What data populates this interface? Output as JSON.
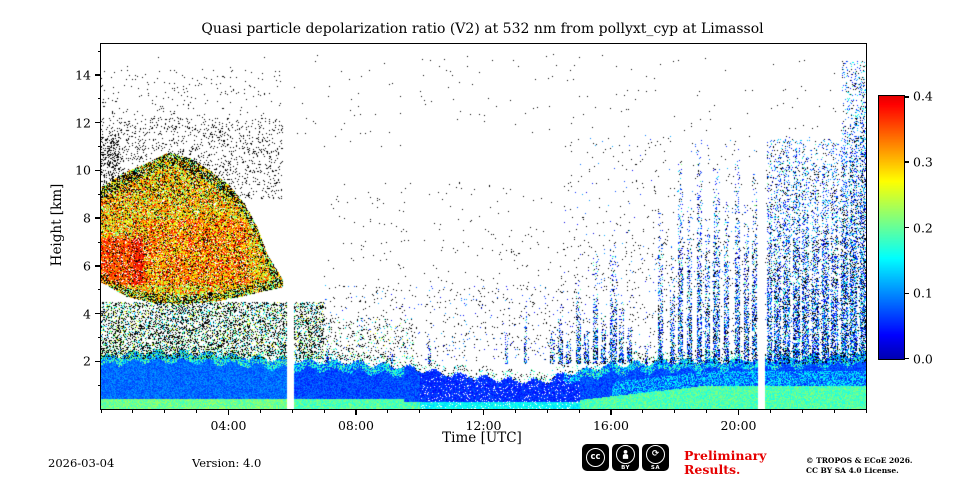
{
  "title": "Quasi particle depolarization ratio (V2) at 532 nm from pollyxt_cyp at Limassol",
  "footer": {
    "date": "2026-03-04",
    "version": "Version: 4.0",
    "preliminary_line1": "Preliminary",
    "preliminary_line2": "Results.",
    "license_line1": "© TROPOS & ECoE 2026.",
    "license_line2": "CC BY SA 4.0 License."
  },
  "badges": {
    "cc": "cc",
    "by": "BY",
    "sa": "SA"
  },
  "colors": {
    "preliminary_red": "#e60000",
    "axis": "#000000"
  },
  "chart_data": {
    "type": "heatmap",
    "title": "Quasi particle depolarization ratio (V2) at 532 nm from pollyxt_cyp at Limassol",
    "xlabel": "Time [UTC]",
    "ylabel": "Height [km]",
    "xlim_hours": [
      0,
      24
    ],
    "ylim_km": [
      0,
      15.3
    ],
    "x_ticks": [
      {
        "hour": 4,
        "label": "04:00"
      },
      {
        "hour": 8,
        "label": "08:00"
      },
      {
        "hour": 12,
        "label": "12:00"
      },
      {
        "hour": 16,
        "label": "16:00"
      },
      {
        "hour": 20,
        "label": "20:00"
      }
    ],
    "x_minor_step_hours": 1,
    "y_ticks": [
      2,
      4,
      6,
      8,
      10,
      12,
      14
    ],
    "y_minor_step_km": 1,
    "grid": false,
    "colorbar": {
      "min": 0.0,
      "max": 0.4,
      "ticks": [
        "0.0",
        "0.1",
        "0.2",
        "0.3",
        "0.4"
      ],
      "colormap": "jet-like"
    },
    "data_gaps_hours": [
      [
        5.85,
        6.02
      ],
      [
        20.62,
        20.79
      ]
    ],
    "description": "Lidar quicklook: low boundary layer (depol ~0.05) all day with greener band near ground; lofted dust layer 00:00-05:40 UTC between ~4.4 and ~10.8 km with high depol 0.2-0.4; dense dark noise band 2-4.5 km before 07:00; sparse noise midday; many narrow cloud/precip columns after 14:00 reaching up to ~11-14 km.",
    "features": {
      "boundary_layer": {
        "top_profile_km": [
          [
            0,
            2.2
          ],
          [
            1.5,
            2.4
          ],
          [
            3,
            2.35
          ],
          [
            4.5,
            2.2
          ],
          [
            6,
            2.05
          ],
          [
            8,
            1.95
          ],
          [
            9.5,
            1.75
          ],
          [
            11,
            1.45
          ],
          [
            12.5,
            1.25
          ],
          [
            13.8,
            1.15
          ],
          [
            14.8,
            1.55
          ],
          [
            16,
            1.85
          ],
          [
            18,
            2.0
          ],
          [
            20,
            2.05
          ],
          [
            22,
            2.15
          ],
          [
            24,
            2.25
          ]
        ],
        "base_value": 0.045,
        "green_band_value": 0.16
      },
      "dust_layer": {
        "t_end": 5.7,
        "top_profile": [
          [
            0,
            9.3
          ],
          [
            0.7,
            9.9
          ],
          [
            1.4,
            10.3
          ],
          [
            2.1,
            10.75
          ],
          [
            2.8,
            10.5
          ],
          [
            3.4,
            10.0
          ],
          [
            4.0,
            9.4
          ],
          [
            4.5,
            8.6
          ],
          [
            4.9,
            7.6
          ],
          [
            5.2,
            6.5
          ],
          [
            5.7,
            5.4
          ]
        ],
        "bottom_profile": [
          [
            0,
            5.3
          ],
          [
            0.8,
            4.7
          ],
          [
            1.6,
            4.45
          ],
          [
            2.6,
            4.4
          ],
          [
            3.6,
            4.5
          ],
          [
            4.4,
            4.7
          ],
          [
            5.0,
            4.9
          ],
          [
            5.7,
            5.1
          ]
        ],
        "value_range": [
          0.2,
          0.36
        ],
        "red_core": {
          "t": [
            0,
            1.3
          ],
          "h": [
            5.2,
            7.2
          ],
          "value_range": [
            0.3,
            0.4
          ]
        }
      },
      "speckle_regions": [
        {
          "t": [
            0,
            7.0
          ],
          "h": [
            2.1,
            4.5
          ],
          "d": 0.5,
          "mix": "darkmix"
        },
        {
          "t": [
            0,
            5.7
          ],
          "h": [
            8.8,
            12.2
          ],
          "d": 0.1,
          "mix": "black"
        },
        {
          "t": [
            0,
            5.7
          ],
          "h": [
            12.2,
            14.2
          ],
          "d": 0.02,
          "mix": "black"
        },
        {
          "t": [
            0,
            0.6
          ],
          "h": [
            9.5,
            11.5
          ],
          "d": 0.25,
          "mix": "black"
        },
        {
          "t": [
            5.7,
            9.8
          ],
          "h": [
            2.0,
            3.8
          ],
          "d": 0.1,
          "mix": "darkmix"
        },
        {
          "t": [
            7.0,
            14.5
          ],
          "h": [
            2.0,
            5.2
          ],
          "d": 0.035,
          "mix": "blackblue"
        },
        {
          "t": [
            7.0,
            14.5
          ],
          "h": [
            5.2,
            9.5
          ],
          "d": 0.007,
          "mix": "black"
        },
        {
          "t": [
            14.5,
            24
          ],
          "h": [
            2.0,
            7.0
          ],
          "d": 0.03,
          "mix": "blackblue"
        },
        {
          "t": [
            14.5,
            24
          ],
          "h": [
            7.0,
            11.5
          ],
          "d": 0.012,
          "mix": "blackblue"
        },
        {
          "t": [
            0,
            24
          ],
          "h": [
            11.0,
            14.9
          ],
          "d": 0.003,
          "mix": "black"
        },
        {
          "t": [
            21.0,
            24
          ],
          "h": [
            2.2,
            11.3
          ],
          "d": 0.09,
          "mix": "bluemix"
        },
        {
          "t": [
            23.25,
            24
          ],
          "h": [
            2.2,
            14.6
          ],
          "d": 0.15,
          "mix": "bluemix"
        }
      ],
      "streaks": [
        [
          7.1,
          0.03,
          2.9
        ],
        [
          9.1,
          0.03,
          2.7
        ],
        [
          10.3,
          0.03,
          3.1
        ],
        [
          12.7,
          0.03,
          3.3
        ],
        [
          13.3,
          0.04,
          3.9
        ],
        [
          14.15,
          0.05,
          3.4
        ],
        [
          14.4,
          0.06,
          4.3
        ],
        [
          14.65,
          0.05,
          3.0
        ],
        [
          14.95,
          0.07,
          5.6
        ],
        [
          15.2,
          0.05,
          3.6
        ],
        [
          15.5,
          0.06,
          6.4
        ],
        [
          15.75,
          0.05,
          4.2
        ],
        [
          16.05,
          0.08,
          6.9
        ],
        [
          16.3,
          0.05,
          4.8
        ],
        [
          16.55,
          0.05,
          3.6
        ],
        [
          17.1,
          0.04,
          2.8
        ],
        [
          17.55,
          0.06,
          8.4
        ],
        [
          17.9,
          0.05,
          6.0
        ],
        [
          18.15,
          0.07,
          10.4
        ],
        [
          18.45,
          0.06,
          8.8
        ],
        [
          18.75,
          0.07,
          10.9
        ],
        [
          19.0,
          0.05,
          8.0
        ],
        [
          19.3,
          0.08,
          10.6
        ],
        [
          19.6,
          0.06,
          9.0
        ],
        [
          19.95,
          0.07,
          10.9
        ],
        [
          20.25,
          0.06,
          8.6
        ],
        [
          20.5,
          0.05,
          10.0
        ],
        [
          20.95,
          0.07,
          11.2
        ],
        [
          21.2,
          0.08,
          10.6
        ],
        [
          21.5,
          0.09,
          11.3
        ],
        [
          21.8,
          0.08,
          10.9
        ],
        [
          22.1,
          0.09,
          11.1
        ],
        [
          22.4,
          0.08,
          10.4
        ],
        [
          22.7,
          0.09,
          11.4
        ],
        [
          23.0,
          0.08,
          10.9
        ],
        [
          23.3,
          0.09,
          11.0
        ],
        [
          23.6,
          0.09,
          12.5
        ],
        [
          23.9,
          0.08,
          13.8
        ]
      ]
    }
  }
}
